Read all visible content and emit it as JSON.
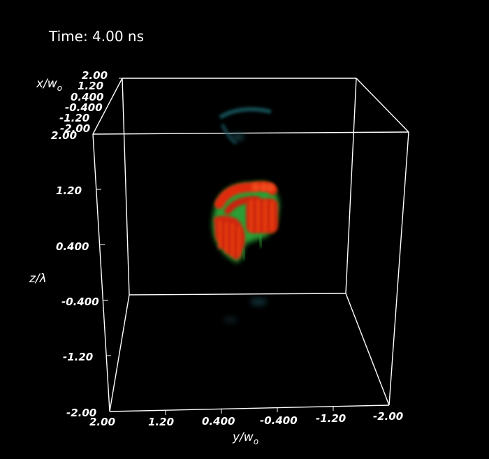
{
  "time_label": "Time: 4.00 ns",
  "axes": {
    "x": {
      "label_main": "x/w",
      "label_sub": "o",
      "ticks": [
        "2.00",
        "1.20",
        "0.400",
        "-0.400",
        "-1.20",
        "-2.00"
      ]
    },
    "y": {
      "label_main": "y/w",
      "label_sub": "o",
      "ticks": [
        "2.00",
        "1.20",
        "0.400",
        "-0.400",
        "-1.20",
        "-2.00"
      ]
    },
    "z": {
      "label_main": "z/λ",
      "ticks": [
        "2.00",
        "1.20",
        "0.400",
        "-0.400",
        "-1.20",
        "-2.00"
      ]
    },
    "shared_corner_label": "2.00"
  },
  "colors": {
    "background": "#000000",
    "box": "#ffffff",
    "volume_core": "#e02a0a",
    "volume_edge": "#38c23a",
    "volume_faint": "#1f6a73"
  }
}
